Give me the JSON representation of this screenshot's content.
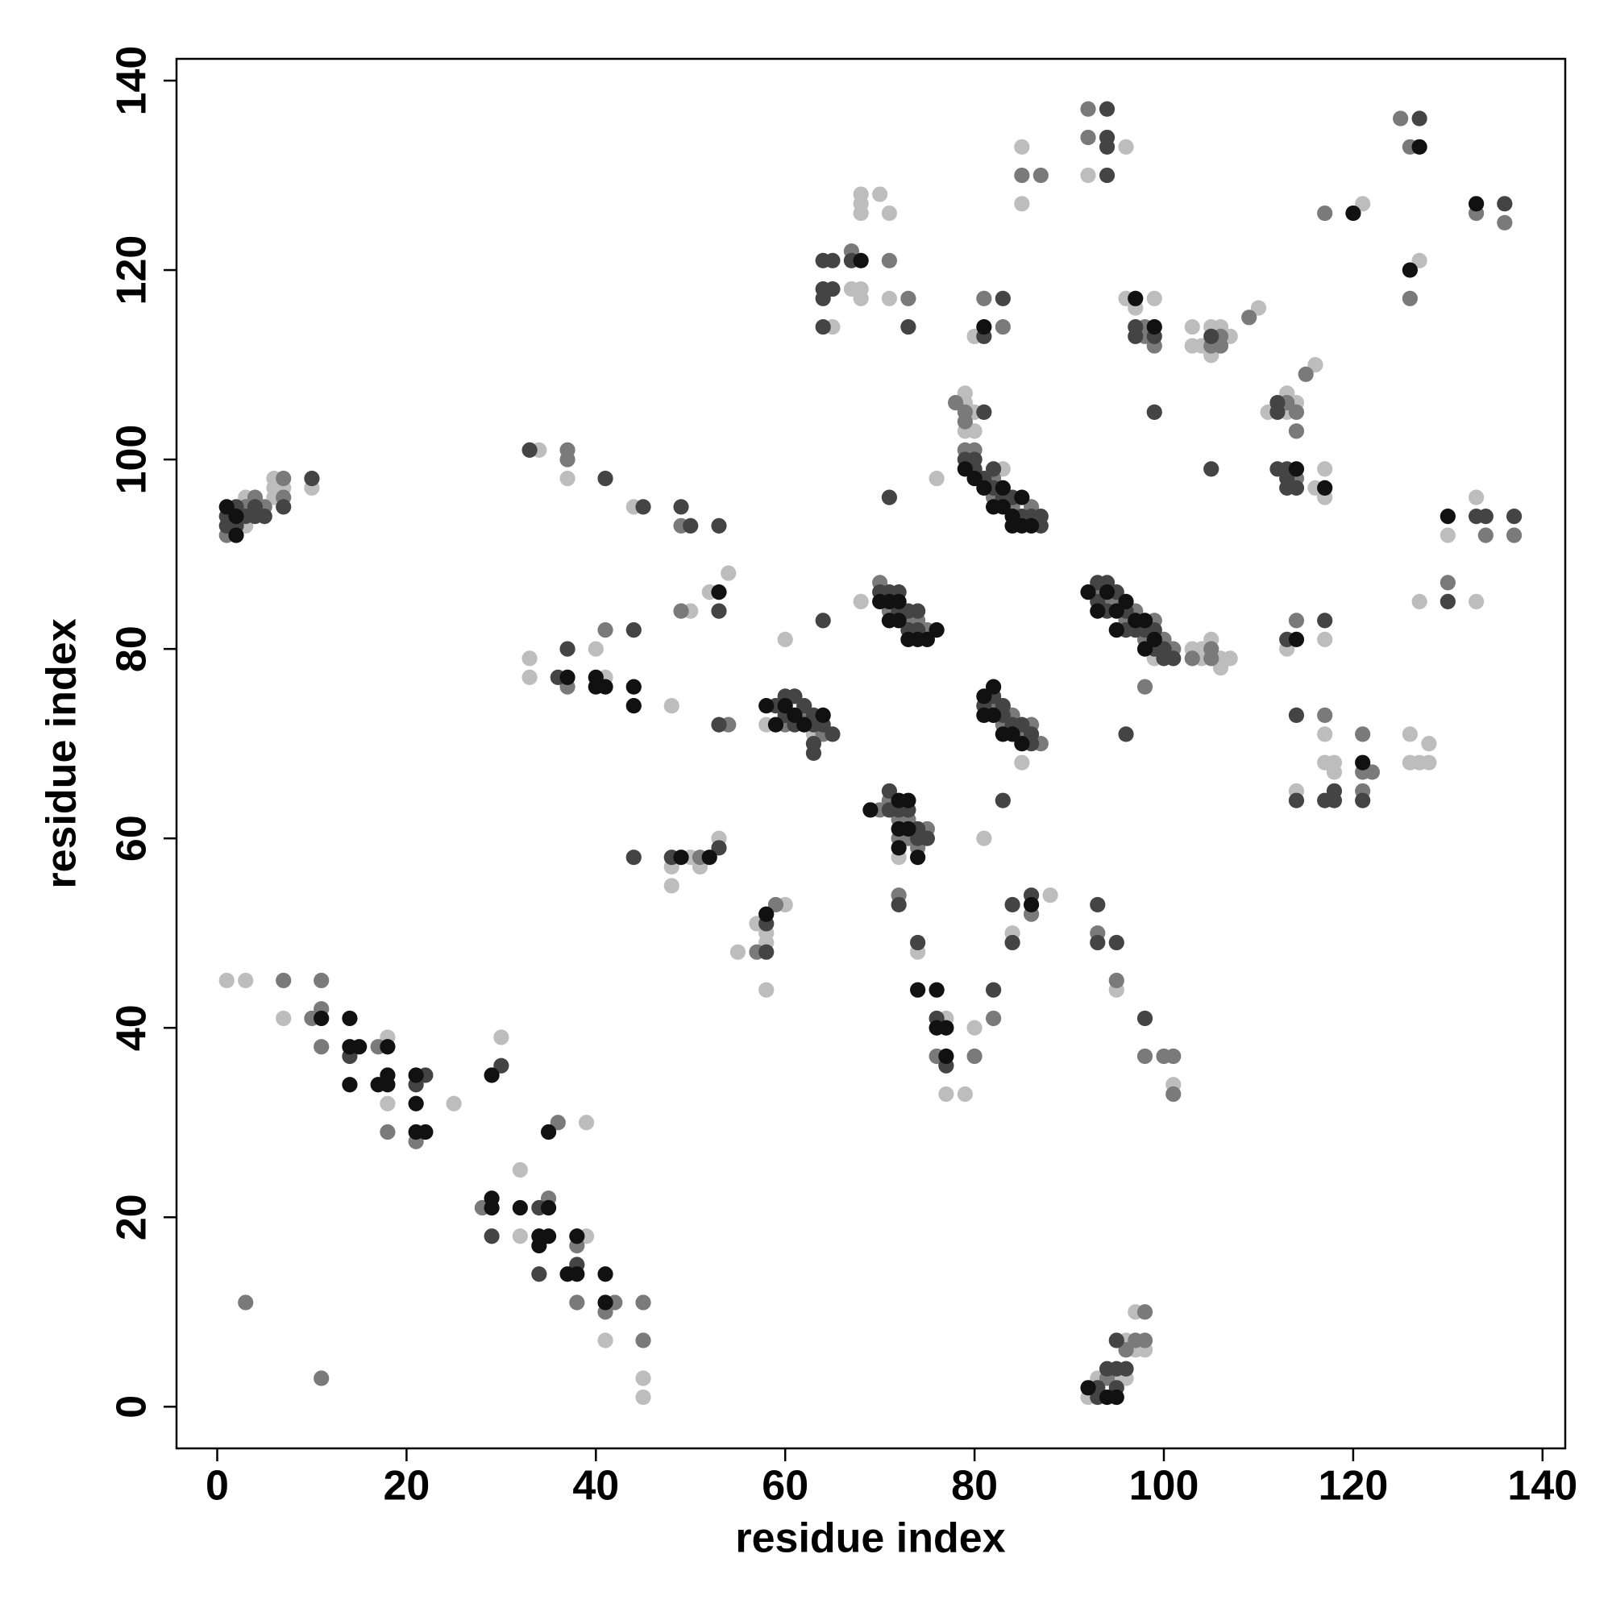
{
  "chart_data": {
    "type": "scatter",
    "x_label": "residue index",
    "y_label": "residue index",
    "xlim": [
      -4.3,
      142.4
    ],
    "ylim": [
      -4.4,
      142.3
    ],
    "xticks": [
      0,
      20,
      40,
      60,
      80,
      100,
      120,
      140
    ],
    "yticks": [
      0,
      20,
      40,
      60,
      80,
      100,
      120,
      140
    ],
    "series": [
      {
        "color": "#bdbdbd",
        "x": [
          1,
          3,
          7,
          18,
          18,
          25,
          30,
          32,
          32,
          39,
          39,
          41,
          45,
          45,
          3,
          3,
          6,
          6,
          6,
          7,
          10,
          34,
          37,
          33,
          33,
          40,
          41,
          44,
          48,
          50,
          52,
          54,
          48,
          48,
          50,
          51,
          53,
          55,
          57,
          58,
          58,
          58,
          60,
          60,
          58,
          63,
          68,
          72,
          74,
          77,
          77,
          79,
          80,
          83,
          79,
          79,
          80,
          79,
          80,
          80,
          76,
          85,
          81,
          84,
          88,
          99,
          103,
          104,
          104,
          105,
          106,
          106,
          107,
          95,
          101,
          92,
          93,
          95,
          96,
          96,
          97,
          97,
          98,
          65,
          67,
          68,
          68,
          68,
          68,
          68,
          70,
          71,
          71,
          85,
          85,
          96,
          92,
          96,
          97,
          99,
          103,
          103,
          104,
          105,
          105,
          106,
          107,
          110,
          111,
          113,
          113,
          114,
          116,
          116,
          117,
          117,
          113,
          117,
          117,
          117,
          118,
          118,
          114,
          126,
          126,
          127,
          128,
          128,
          121,
          127,
          130,
          127,
          133,
          133
        ],
        "values": [
          45,
          45,
          41,
          39,
          32,
          32,
          39,
          25,
          18,
          18,
          30,
          7,
          3,
          1,
          96,
          93,
          98,
          97,
          96,
          97,
          97,
          101,
          98,
          79,
          77,
          80,
          77,
          95,
          74,
          84,
          86,
          88,
          57,
          55,
          58,
          57,
          60,
          48,
          51,
          50,
          49,
          44,
          53,
          81,
          72,
          71,
          85,
          58,
          48,
          41,
          33,
          33,
          40,
          99,
          106,
          107,
          105,
          103,
          103,
          113,
          98,
          68,
          60,
          50,
          54,
          79,
          80,
          80,
          79,
          81,
          79,
          78,
          79,
          44,
          34,
          1,
          3,
          3,
          3,
          7,
          10,
          6,
          6,
          114,
          118,
          118,
          117,
          128,
          127,
          126,
          128,
          126,
          117,
          133,
          127,
          133,
          130,
          117,
          116,
          117,
          114,
          112,
          112,
          114,
          111,
          114,
          113,
          116,
          105,
          107,
          105,
          106,
          110,
          97,
          99,
          96,
          80,
          81,
          71,
          68,
          68,
          67,
          65,
          71,
          68,
          68,
          68,
          70,
          127,
          121,
          92,
          85,
          96,
          85
        ]
      },
      {
        "color": "#7a7a7a",
        "x": [
          1,
          3,
          4,
          5,
          7,
          7,
          7,
          11,
          10,
          11,
          11,
          17,
          18,
          21,
          28,
          35,
          38,
          38,
          42,
          41,
          45,
          45,
          3,
          11,
          36,
          37,
          37,
          37,
          41,
          49,
          49,
          54,
          51,
          57,
          59,
          60,
          62,
          64,
          70,
          71,
          73,
          74,
          75,
          70,
          71,
          72,
          72,
          73,
          73,
          74,
          75,
          72,
          76,
          80,
          82,
          79,
          80,
          82,
          82,
          84,
          86,
          78,
          79,
          79,
          81,
          83,
          82,
          83,
          84,
          85,
          86,
          87,
          86,
          93,
          94,
          95,
          96,
          97,
          98,
          99,
          100,
          101,
          98,
          103,
          105,
          105,
          93,
          95,
          98,
          100,
          101,
          101,
          94,
          97,
          98,
          98,
          96,
          67,
          71,
          73,
          85,
          87,
          92,
          92,
          98,
          98,
          99,
          105,
          106,
          106,
          109,
          113,
          114,
          114,
          114,
          115,
          114,
          117,
          121,
          121,
          122,
          121,
          117,
          125,
          126,
          126,
          130,
          134,
          137,
          133,
          136
        ],
        "values": [
          92,
          95,
          96,
          95,
          98,
          96,
          45,
          45,
          41,
          42,
          38,
          38,
          29,
          28,
          21,
          22,
          17,
          11,
          11,
          10,
          11,
          7,
          11,
          3,
          30,
          101,
          100,
          76,
          82,
          93,
          84,
          72,
          58,
          48,
          53,
          72,
          73,
          71,
          87,
          84,
          83,
          83,
          82,
          63,
          64,
          62,
          60,
          62,
          60,
          59,
          61,
          54,
          37,
          37,
          41,
          101,
          101,
          98,
          96,
          95,
          95,
          106,
          105,
          104,
          117,
          114,
          74,
          72,
          73,
          71,
          72,
          70,
          52,
          86,
          85,
          85,
          83,
          84,
          81,
          83,
          81,
          80,
          76,
          79,
          80,
          79,
          50,
          45,
          37,
          37,
          37,
          33,
          3,
          7,
          10,
          7,
          6,
          122,
          121,
          117,
          130,
          130,
          137,
          134,
          114,
          113,
          112,
          112,
          113,
          112,
          115,
          106,
          105,
          103,
          98,
          109,
          83,
          73,
          71,
          67,
          67,
          65,
          126,
          136,
          133,
          117,
          87,
          92,
          92,
          126,
          125
        ]
      },
      {
        "color": "#444444",
        "x": [
          1,
          1,
          2,
          2,
          3,
          4,
          4,
          5,
          7,
          10,
          14,
          21,
          22,
          30,
          29,
          34,
          34,
          38,
          33,
          41,
          36,
          37,
          44,
          45,
          49,
          50,
          53,
          53,
          53,
          44,
          48,
          53,
          58,
          58,
          64,
          59,
          60,
          60,
          61,
          61,
          62,
          63,
          63,
          63,
          63,
          64,
          65,
          70,
          71,
          72,
          72,
          73,
          73,
          74,
          74,
          71,
          71,
          72,
          73,
          74,
          74,
          75,
          72,
          74,
          76,
          77,
          82,
          79,
          80,
          80,
          81,
          82,
          82,
          83,
          84,
          85,
          86,
          87,
          87,
          81,
          81,
          83,
          71,
          81,
          82,
          83,
          83,
          84,
          85,
          86,
          86,
          83,
          84,
          84,
          86,
          93,
          93,
          94,
          94,
          95,
          96,
          96,
          97,
          98,
          99,
          99,
          100,
          100,
          101,
          96,
          93,
          93,
          95,
          98,
          93,
          93,
          94,
          95,
          95,
          95,
          96,
          64,
          65,
          64,
          64,
          65,
          64,
          67,
          73,
          94,
          94,
          94,
          94,
          97,
          97,
          99,
          99,
          105,
          105,
          112,
          112,
          112,
          113,
          113,
          113,
          114,
          113,
          117,
          114,
          114,
          117,
          118,
          118,
          121,
          127,
          130,
          133,
          134,
          137,
          136
        ],
        "values": [
          94,
          93,
          95,
          93,
          94,
          95,
          94,
          94,
          95,
          98,
          37,
          34,
          35,
          36,
          18,
          21,
          14,
          15,
          101,
          98,
          77,
          80,
          82,
          95,
          95,
          93,
          93,
          84,
          72,
          58,
          58,
          59,
          51,
          48,
          83,
          74,
          75,
          73,
          75,
          72,
          74,
          73,
          72,
          70,
          69,
          72,
          71,
          86,
          86,
          86,
          84,
          84,
          82,
          84,
          82,
          65,
          63,
          63,
          63,
          61,
          60,
          60,
          53,
          49,
          41,
          36,
          44,
          100,
          100,
          99,
          98,
          99,
          97,
          96,
          96,
          94,
          94,
          94,
          93,
          105,
          113,
          117,
          96,
          74,
          75,
          74,
          73,
          72,
          72,
          71,
          70,
          64,
          53,
          49,
          54,
          87,
          85,
          87,
          84,
          86,
          84,
          82,
          82,
          82,
          82,
          80,
          80,
          79,
          79,
          71,
          53,
          49,
          49,
          41,
          2,
          1,
          4,
          4,
          2,
          7,
          4,
          121,
          121,
          118,
          117,
          118,
          114,
          121,
          114,
          137,
          134,
          133,
          130,
          114,
          113,
          113,
          105,
          113,
          99,
          106,
          105,
          99,
          99,
          98,
          97,
          97,
          81,
          83,
          73,
          64,
          64,
          65,
          64,
          64,
          136,
          85,
          94,
          94,
          94,
          127
        ]
      },
      {
        "color": "#111111",
        "x": [
          1,
          2,
          2,
          11,
          14,
          14,
          15,
          14,
          18,
          17,
          18,
          18,
          21,
          21,
          21,
          22,
          29,
          29,
          29,
          32,
          35,
          34,
          34,
          35,
          35,
          37,
          38,
          38,
          41,
          41,
          37,
          40,
          40,
          41,
          44,
          44,
          53,
          49,
          52,
          58,
          58,
          59,
          60,
          61,
          62,
          64,
          70,
          71,
          71,
          72,
          72,
          73,
          74,
          75,
          76,
          69,
          72,
          72,
          72,
          73,
          73,
          74,
          74,
          76,
          76,
          77,
          77,
          79,
          80,
          81,
          82,
          83,
          83,
          84,
          84,
          85,
          85,
          86,
          81,
          81,
          81,
          82,
          82,
          83,
          84,
          85,
          86,
          92,
          93,
          94,
          95,
          95,
          96,
          97,
          98,
          98,
          99,
          92,
          94,
          95,
          68,
          97,
          99,
          114,
          117,
          114,
          121,
          120,
          127,
          126,
          130,
          133
        ],
        "values": [
          95,
          94,
          92,
          41,
          41,
          38,
          38,
          34,
          38,
          34,
          35,
          34,
          35,
          32,
          29,
          29,
          35,
          22,
          21,
          21,
          21,
          18,
          17,
          18,
          29,
          14,
          14,
          18,
          14,
          11,
          77,
          77,
          76,
          76,
          76,
          74,
          86,
          58,
          58,
          52,
          74,
          72,
          74,
          73,
          72,
          73,
          85,
          85,
          83,
          85,
          83,
          81,
          81,
          81,
          82,
          63,
          64,
          61,
          59,
          64,
          61,
          58,
          44,
          44,
          40,
          40,
          37,
          99,
          98,
          97,
          95,
          97,
          95,
          94,
          93,
          96,
          93,
          93,
          114,
          75,
          73,
          76,
          73,
          71,
          71,
          70,
          53,
          86,
          84,
          86,
          84,
          82,
          85,
          83,
          83,
          80,
          81,
          2,
          1,
          1,
          121,
          117,
          114,
          99,
          97,
          81,
          68,
          126,
          133,
          120,
          94,
          127
        ]
      }
    ]
  }
}
